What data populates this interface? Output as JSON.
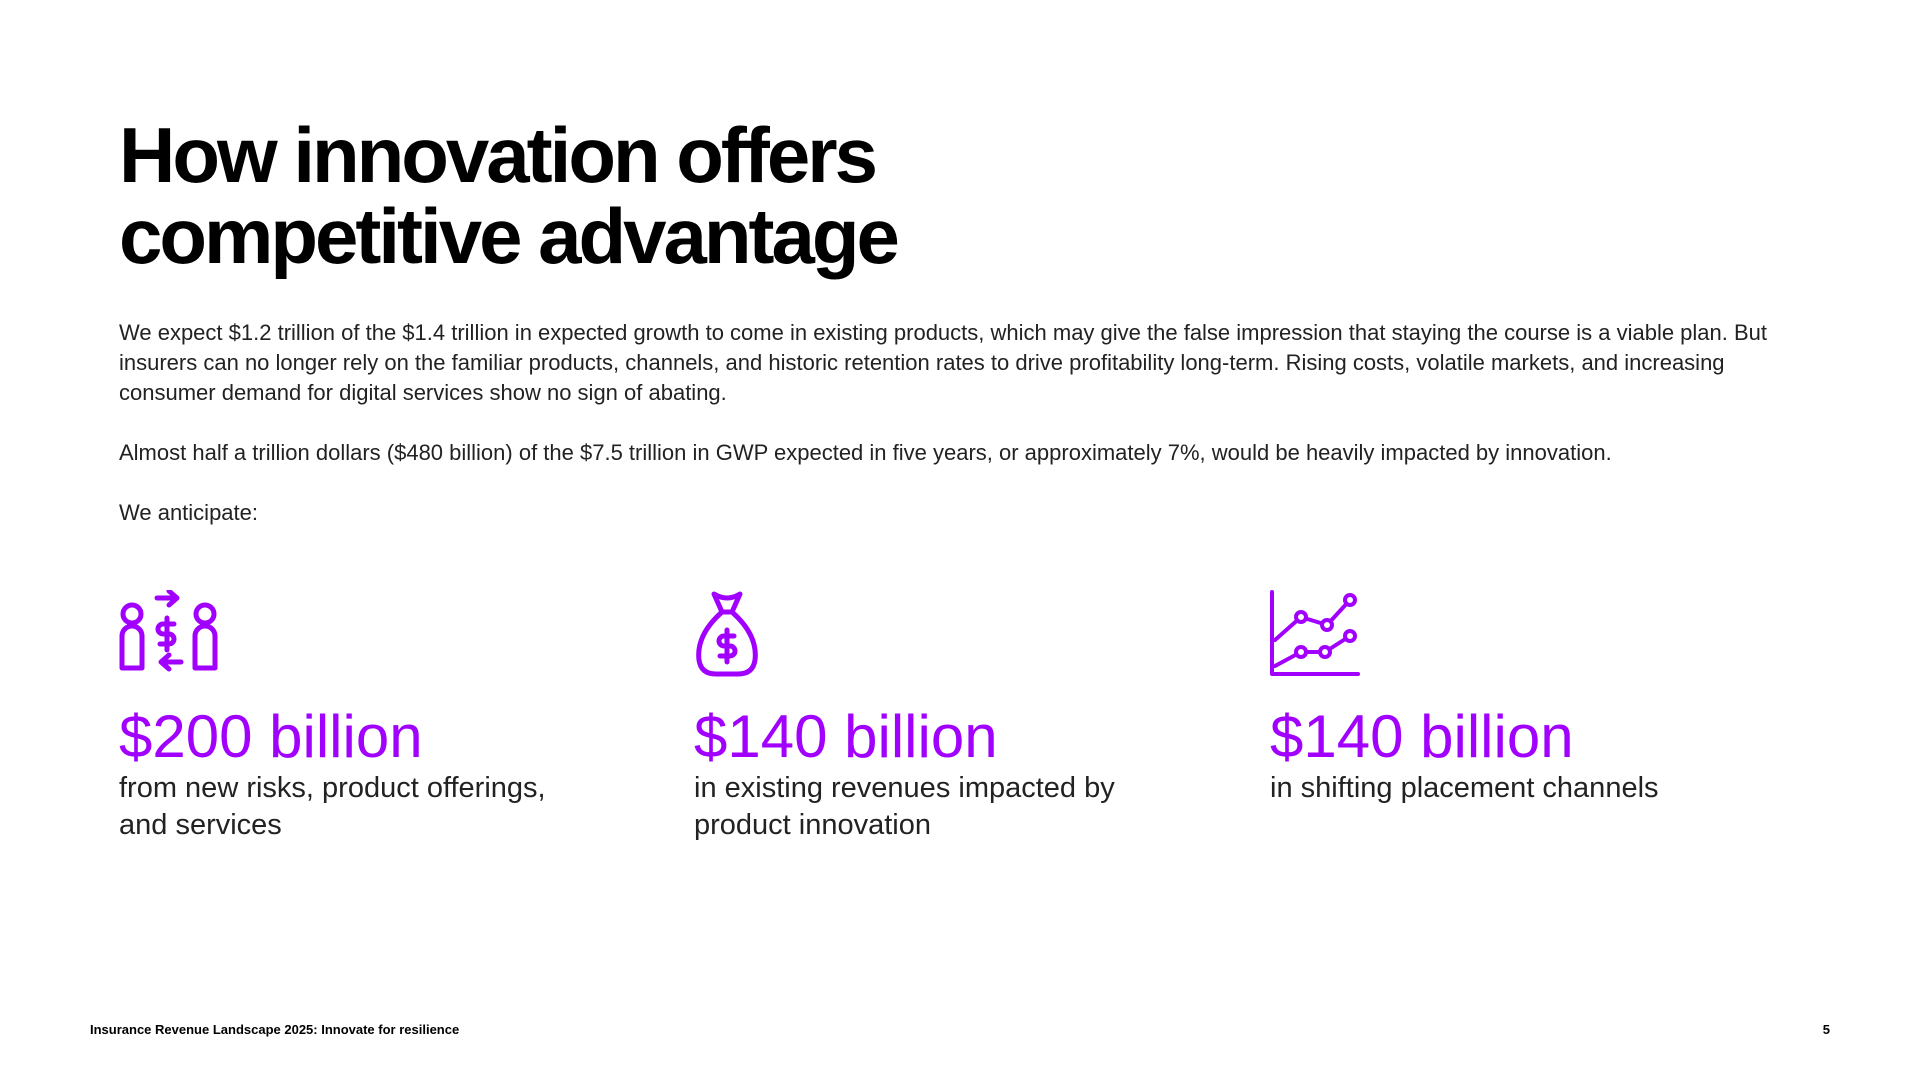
{
  "title": "How innovation offers competitive advantage",
  "paragraphs": [
    "We expect $1.2 trillion of the $1.4 trillion in expected growth to come in existing products, which may give the false impression that staying the course is a viable plan. But insurers can no longer rely on the familiar products, channels, and historic retention rates to drive profitability long-term. Rising costs, volatile markets, and increasing consumer demand for digital services show no sign of abating.",
    "Almost half a trillion dollars ($480 billion) of the $7.5 trillion in GWP expected in five years, or approximately 7%, would be heavily impacted by innovation.",
    "We anticipate:"
  ],
  "stats": [
    {
      "value": "$200 billion",
      "description": "from new risks, product offerings, and services"
    },
    {
      "value": "$140 billion",
      "description": "in existing revenues impacted by product innovation"
    },
    {
      "value": "$140 billion",
      "description": "in shifting placement channels"
    }
  ],
  "footer": {
    "text": "Insurance Revenue Landscape 2025: Innovate for resilience",
    "page": "5"
  }
}
